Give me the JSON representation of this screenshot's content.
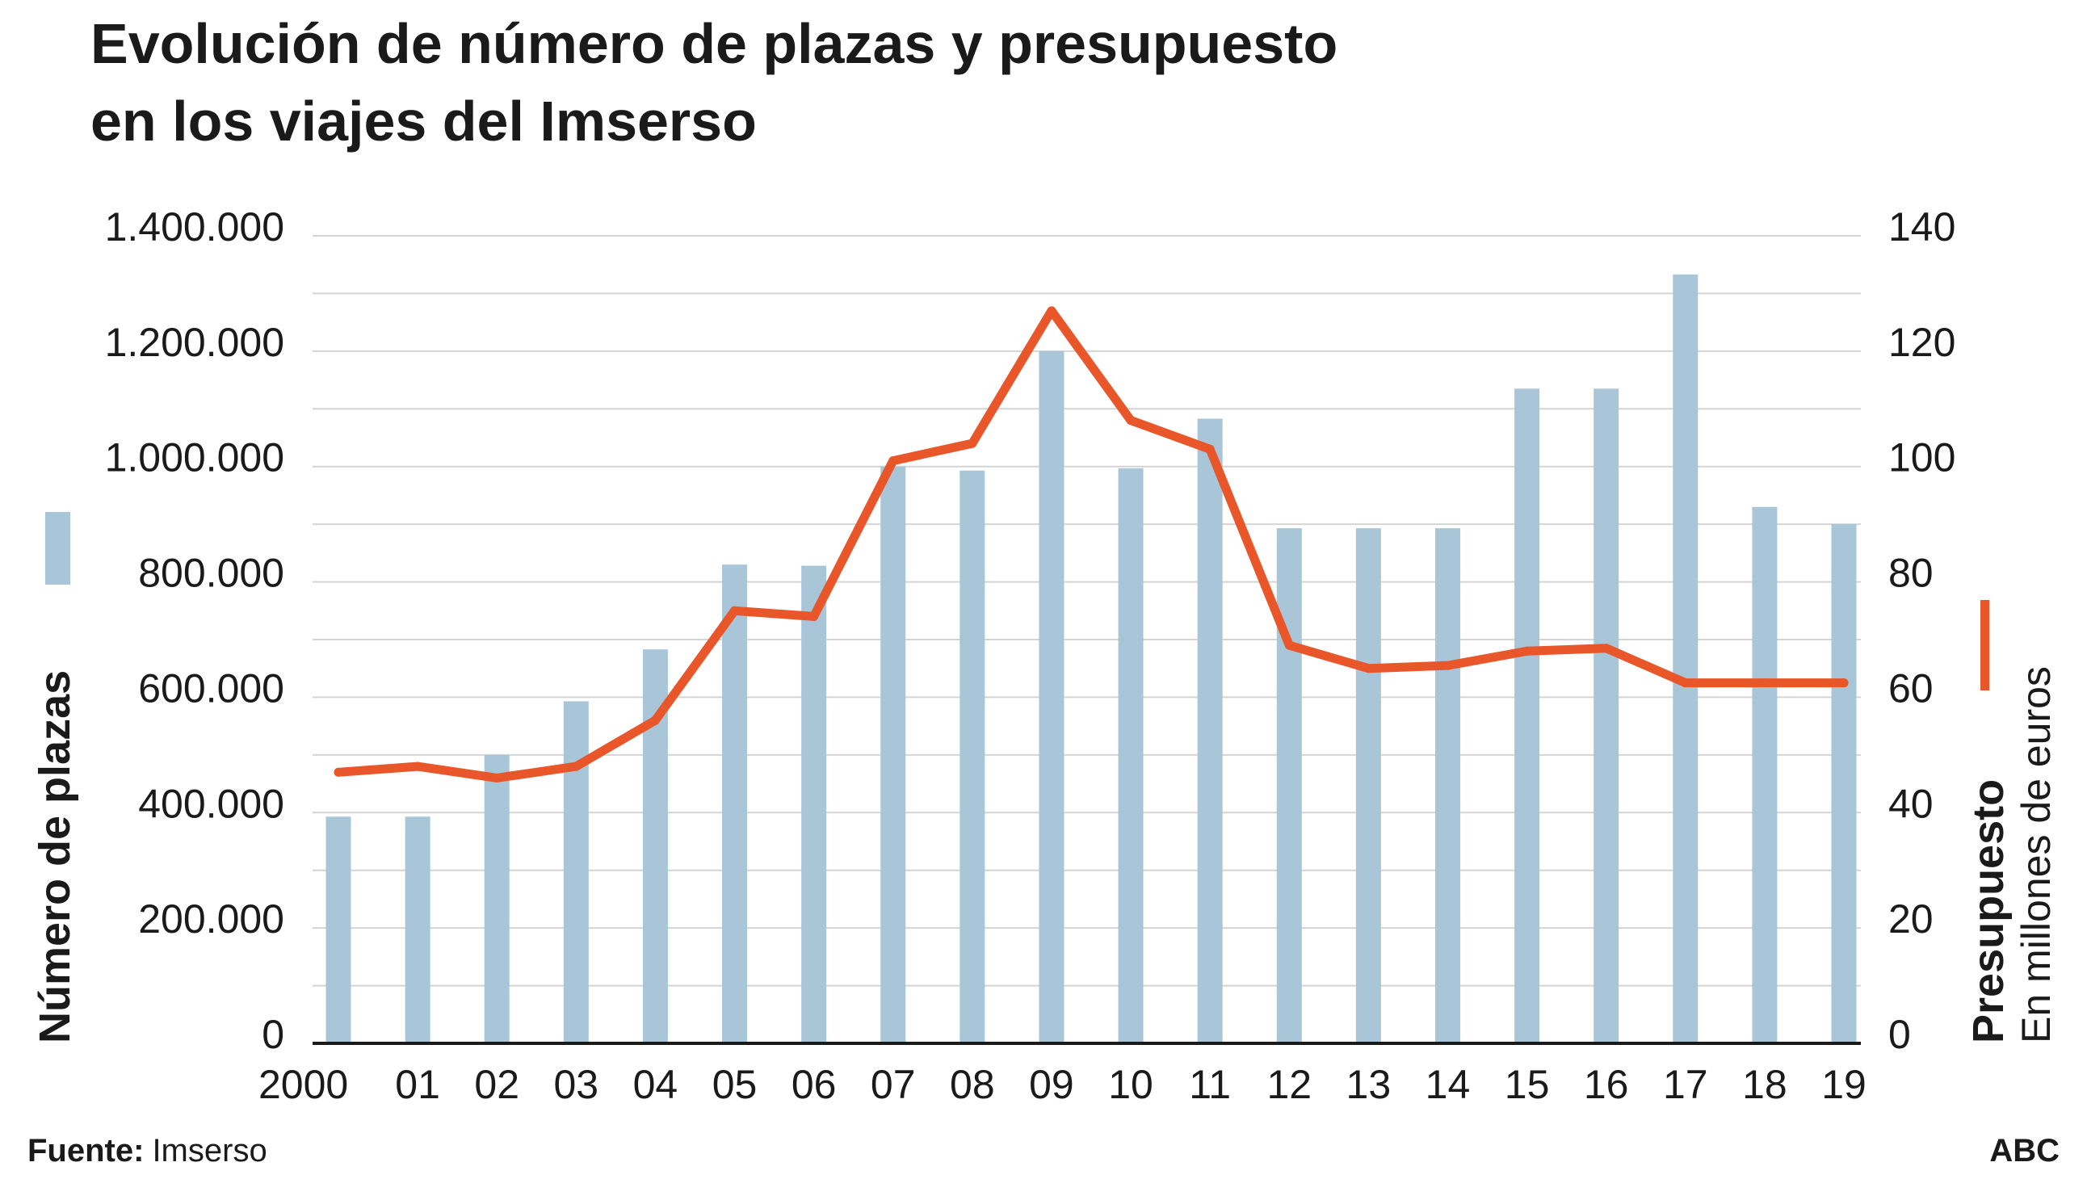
{
  "title_line1": "Evolución de número de plazas y presupuesto",
  "title_line2": "en los viajes del Imserso",
  "source_label": "Fuente:",
  "source_value": "Imserso",
  "brand": "ABC",
  "colors": {
    "bars": "#a8c6d8",
    "line": "#e8562a",
    "grid": "#d4d4d4",
    "axis": "#1a1a1a"
  },
  "chart_data": {
    "type": "bar",
    "grid": true,
    "categories": [
      "2000",
      "01",
      "02",
      "03",
      "04",
      "05",
      "06",
      "07",
      "08",
      "09",
      "10",
      "11",
      "12",
      "13",
      "14",
      "15",
      "16",
      "17",
      "18",
      "19"
    ],
    "series": [
      {
        "name": "Número de plazas",
        "type": "bar",
        "axis": "left",
        "values": [
          393000,
          393000,
          500000,
          593000,
          683000,
          830000,
          828000,
          1000000,
          993000,
          1200000,
          997000,
          1083000,
          893000,
          893000,
          893000,
          1135000,
          1135000,
          1333000,
          930000,
          900000
        ]
      },
      {
        "name": "Presupuesto",
        "type": "line",
        "axis": "right",
        "unit": "En millones de euros",
        "values": [
          47,
          48,
          46,
          48,
          56,
          75,
          74,
          101,
          104,
          127,
          108,
          103,
          69,
          65,
          65.5,
          68,
          68.5,
          62.5,
          62.5,
          62.5
        ]
      }
    ],
    "left_axis": {
      "label": "Número de plazas",
      "ylim": [
        0,
        1400000
      ],
      "ticks": [
        {
          "value": 0,
          "label": "0"
        },
        {
          "value": 200000,
          "label": "200.000"
        },
        {
          "value": 400000,
          "label": "400.000"
        },
        {
          "value": 600000,
          "label": "600.000"
        },
        {
          "value": 800000,
          "label": "800.000"
        },
        {
          "value": 1000000,
          "label": "1.000.000"
        },
        {
          "value": 1200000,
          "label": "1.200.000"
        },
        {
          "value": 1400000,
          "label": "1.400.000"
        }
      ]
    },
    "right_axis": {
      "label": "Presupuesto",
      "sublabel": "En millones de euros",
      "ylim": [
        0,
        140
      ],
      "ticks": [
        {
          "value": 0,
          "label": "0"
        },
        {
          "value": 20,
          "label": "20"
        },
        {
          "value": 40,
          "label": "40"
        },
        {
          "value": 60,
          "label": "60"
        },
        {
          "value": 80,
          "label": "80"
        },
        {
          "value": 100,
          "label": "100"
        },
        {
          "value": 120,
          "label": "120"
        },
        {
          "value": 140,
          "label": "140"
        }
      ]
    }
  }
}
